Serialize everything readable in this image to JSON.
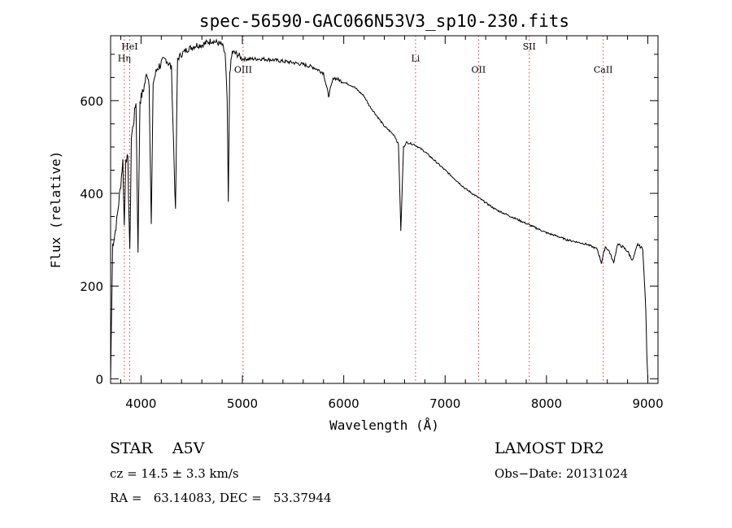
{
  "chart_data": {
    "type": "line",
    "title": "spec-56590-GAC066N53V3_sp10-230.fits",
    "xlabel": "Wavelength (Å)",
    "ylabel": "Flux (relative)",
    "xlim": [
      3700,
      9100
    ],
    "ylim": [
      -10,
      740
    ],
    "x_ticks": [
      4000,
      5000,
      6000,
      7000,
      8000,
      9000
    ],
    "x_tick_labels": [
      "4000",
      "5000",
      "6000",
      "7000",
      "8000",
      "9000"
    ],
    "y_ticks": [
      0,
      200,
      400,
      600
    ],
    "y_tick_labels": [
      "0",
      "200",
      "400",
      "600"
    ],
    "series": [
      {
        "name": "spectrum",
        "x": [
          3700,
          3720,
          3740,
          3760,
          3780,
          3800,
          3820,
          3835,
          3850,
          3870,
          3889,
          3905,
          3930,
          3950,
          3970,
          3990,
          4020,
          4060,
          4080,
          4101,
          4120,
          4160,
          4200,
          4250,
          4300,
          4340,
          4360,
          4400,
          4450,
          4500,
          4550,
          4600,
          4650,
          4700,
          4750,
          4800,
          4830,
          4850,
          4861,
          4875,
          4900,
          4950,
          5000,
          5100,
          5200,
          5300,
          5400,
          5500,
          5600,
          5700,
          5800,
          5850,
          5900,
          6000,
          6100,
          6200,
          6250,
          6300,
          6350,
          6400,
          6450,
          6500,
          6540,
          6563,
          6590,
          6620,
          6700,
          6800,
          6900,
          7000,
          7100,
          7200,
          7300,
          7400,
          7500,
          7600,
          7700,
          7800,
          7900,
          8000,
          8100,
          8200,
          8300,
          8400,
          8500,
          8542,
          8580,
          8620,
          8662,
          8700,
          8750,
          8800,
          8850,
          8900,
          8950,
          8980,
          8990,
          9000
        ],
        "y": [
          0,
          290,
          310,
          340,
          380,
          420,
          470,
          330,
          480,
          470,
          270,
          520,
          560,
          600,
          280,
          600,
          620,
          660,
          640,
          330,
          640,
          670,
          680,
          690,
          670,
          360,
          690,
          700,
          710,
          715,
          720,
          720,
          725,
          730,
          725,
          720,
          700,
          600,
          380,
          660,
          705,
          700,
          690,
          690,
          690,
          688,
          685,
          682,
          678,
          672,
          660,
          610,
          650,
          640,
          630,
          610,
          590,
          575,
          560,
          545,
          535,
          525,
          505,
          320,
          500,
          510,
          505,
          490,
          470,
          450,
          430,
          410,
          395,
          380,
          365,
          355,
          345,
          335,
          325,
          315,
          308,
          300,
          295,
          290,
          280,
          250,
          285,
          275,
          250,
          290,
          285,
          275,
          255,
          290,
          280,
          150,
          50,
          0
        ]
      }
    ],
    "reference_lines": [
      {
        "label": "HeI",
        "x": 3888,
        "label_y": 710
      },
      {
        "label": "Hη",
        "x": 3835,
        "label_y": 685
      },
      {
        "label": "OIII",
        "x": 5007,
        "label_y": 660
      },
      {
        "label": "Li",
        "x": 6708,
        "label_y": 685
      },
      {
        "label": "OII",
        "x": 7330,
        "label_y": 660
      },
      {
        "label": "SII",
        "x": 7830,
        "label_y": 710
      },
      {
        "label": "CaII",
        "x": 8560,
        "label_y": 660
      }
    ]
  },
  "object_info": {
    "class_label": "STAR",
    "subclass": "A5V",
    "survey": "LAMOST DR2",
    "redshift": "cz = 14.5 ± 3.3 km/s",
    "obs_date": "Obs−Date: 20131024",
    "coordinates": "RA =   63.14083, DEC =   53.37944"
  }
}
